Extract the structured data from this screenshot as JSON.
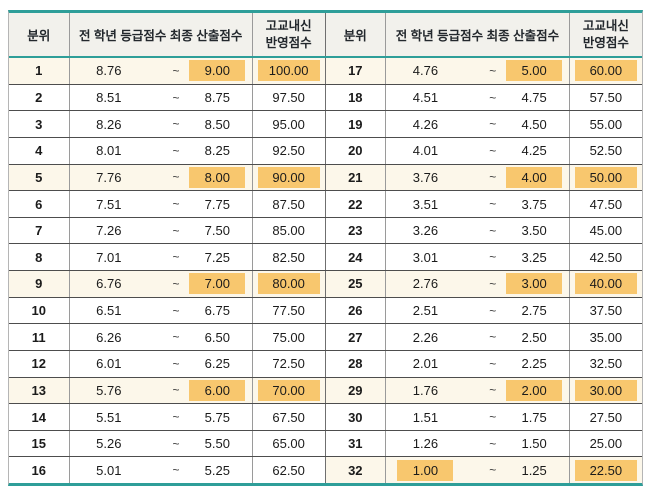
{
  "table": {
    "headers": {
      "rank": "분위",
      "grade_range": "전 학년 등급점수 최종 산출점수",
      "reflect": "고교내신\n반영점수"
    },
    "tilde": "~",
    "left_rows": [
      {
        "rank": "1",
        "min": "8.76",
        "max": "9.00",
        "score": "100.00",
        "hl": [
          "max",
          "score"
        ]
      },
      {
        "rank": "2",
        "min": "8.51",
        "max": "8.75",
        "score": "97.50",
        "hl": []
      },
      {
        "rank": "3",
        "min": "8.26",
        "max": "8.50",
        "score": "95.00",
        "hl": []
      },
      {
        "rank": "4",
        "min": "8.01",
        "max": "8.25",
        "score": "92.50",
        "hl": []
      },
      {
        "rank": "5",
        "min": "7.76",
        "max": "8.00",
        "score": "90.00",
        "hl": [
          "max",
          "score"
        ]
      },
      {
        "rank": "6",
        "min": "7.51",
        "max": "7.75",
        "score": "87.50",
        "hl": []
      },
      {
        "rank": "7",
        "min": "7.26",
        "max": "7.50",
        "score": "85.00",
        "hl": []
      },
      {
        "rank": "8",
        "min": "7.01",
        "max": "7.25",
        "score": "82.50",
        "hl": []
      },
      {
        "rank": "9",
        "min": "6.76",
        "max": "7.00",
        "score": "80.00",
        "hl": [
          "max",
          "score"
        ]
      },
      {
        "rank": "10",
        "min": "6.51",
        "max": "6.75",
        "score": "77.50",
        "hl": []
      },
      {
        "rank": "11",
        "min": "6.26",
        "max": "6.50",
        "score": "75.00",
        "hl": []
      },
      {
        "rank": "12",
        "min": "6.01",
        "max": "6.25",
        "score": "72.50",
        "hl": []
      },
      {
        "rank": "13",
        "min": "5.76",
        "max": "6.00",
        "score": "70.00",
        "hl": [
          "max",
          "score"
        ]
      },
      {
        "rank": "14",
        "min": "5.51",
        "max": "5.75",
        "score": "67.50",
        "hl": []
      },
      {
        "rank": "15",
        "min": "5.26",
        "max": "5.50",
        "score": "65.00",
        "hl": []
      },
      {
        "rank": "16",
        "min": "5.01",
        "max": "5.25",
        "score": "62.50",
        "hl": []
      }
    ],
    "right_rows": [
      {
        "rank": "17",
        "min": "4.76",
        "max": "5.00",
        "score": "60.00",
        "hl": [
          "max",
          "score"
        ]
      },
      {
        "rank": "18",
        "min": "4.51",
        "max": "4.75",
        "score": "57.50",
        "hl": []
      },
      {
        "rank": "19",
        "min": "4.26",
        "max": "4.50",
        "score": "55.00",
        "hl": []
      },
      {
        "rank": "20",
        "min": "4.01",
        "max": "4.25",
        "score": "52.50",
        "hl": []
      },
      {
        "rank": "21",
        "min": "3.76",
        "max": "4.00",
        "score": "50.00",
        "hl": [
          "max",
          "score"
        ]
      },
      {
        "rank": "22",
        "min": "3.51",
        "max": "3.75",
        "score": "47.50",
        "hl": []
      },
      {
        "rank": "23",
        "min": "3.26",
        "max": "3.50",
        "score": "45.00",
        "hl": []
      },
      {
        "rank": "24",
        "min": "3.01",
        "max": "3.25",
        "score": "42.50",
        "hl": []
      },
      {
        "rank": "25",
        "min": "2.76",
        "max": "3.00",
        "score": "40.00",
        "hl": [
          "max",
          "score"
        ]
      },
      {
        "rank": "26",
        "min": "2.51",
        "max": "2.75",
        "score": "37.50",
        "hl": []
      },
      {
        "rank": "27",
        "min": "2.26",
        "max": "2.50",
        "score": "35.00",
        "hl": []
      },
      {
        "rank": "28",
        "min": "2.01",
        "max": "2.25",
        "score": "32.50",
        "hl": []
      },
      {
        "rank": "29",
        "min": "1.76",
        "max": "2.00",
        "score": "30.00",
        "hl": [
          "max",
          "score"
        ]
      },
      {
        "rank": "30",
        "min": "1.51",
        "max": "1.75",
        "score": "27.50",
        "hl": []
      },
      {
        "rank": "31",
        "min": "1.26",
        "max": "1.50",
        "score": "25.00",
        "hl": []
      },
      {
        "rank": "32",
        "min": "1.00",
        "max": "1.25",
        "score": "22.50",
        "hl": [
          "min",
          "score"
        ]
      }
    ]
  },
  "colors": {
    "teal_border": "#2E9E99",
    "highlight": "#F8C76E",
    "header_bg": "#F2F1EC",
    "highlight_row_tint": "#FCF7EA"
  }
}
